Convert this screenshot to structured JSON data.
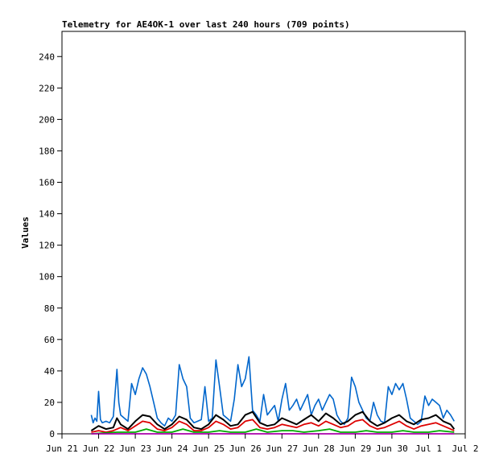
{
  "chart_data": {
    "type": "line",
    "title": "Telemetry for AE4OK-1 over last 240 hours (709 points)",
    "xlabel": "",
    "ylabel": "Values",
    "x_ticks": [
      "Jun 21",
      "Jun 22",
      "Jun 23",
      "Jun 24",
      "Jun 25",
      "Jun 26",
      "Jun 27",
      "Jun 28",
      "Jun 29",
      "Jun 30",
      "Jul 1",
      "Jul 2"
    ],
    "y_ticks": [
      0,
      20,
      40,
      60,
      80,
      100,
      120,
      140,
      160,
      180,
      200,
      220,
      240
    ],
    "ylim": [
      0,
      256
    ],
    "xlim_days": [
      0,
      11
    ],
    "grid": false,
    "legend": "none",
    "series": [
      {
        "color": "#0066cc",
        "x": [
          0.8,
          0.85,
          0.9,
          0.95,
          1.0,
          1.05,
          1.1,
          1.2,
          1.3,
          1.4,
          1.5,
          1.55,
          1.6,
          1.7,
          1.8,
          1.9,
          2.0,
          2.1,
          2.2,
          2.3,
          2.4,
          2.5,
          2.6,
          2.7,
          2.8,
          2.9,
          3.0,
          3.1,
          3.2,
          3.3,
          3.4,
          3.5,
          3.6,
          3.7,
          3.8,
          3.9,
          4.0,
          4.1,
          4.2,
          4.3,
          4.4,
          4.5,
          4.6,
          4.7,
          4.8,
          4.9,
          5.0,
          5.1,
          5.2,
          5.3,
          5.4,
          5.5,
          5.6,
          5.7,
          5.8,
          5.9,
          6.0,
          6.1,
          6.2,
          6.3,
          6.4,
          6.5,
          6.6,
          6.7,
          6.8,
          6.9,
          7.0,
          7.1,
          7.2,
          7.3,
          7.4,
          7.5,
          7.6,
          7.7,
          7.8,
          7.9,
          8.0,
          8.1,
          8.2,
          8.3,
          8.4,
          8.5,
          8.6,
          8.7,
          8.8,
          8.9,
          9.0,
          9.1,
          9.2,
          9.3,
          9.4,
          9.5,
          9.6,
          9.7,
          9.8,
          9.9,
          10.0,
          10.1,
          10.2,
          10.3,
          10.4,
          10.5,
          10.6,
          10.7
        ],
        "values": [
          12,
          7,
          10,
          8,
          27,
          9,
          7,
          8,
          7,
          11,
          41,
          20,
          12,
          10,
          8,
          32,
          25,
          35,
          42,
          38,
          30,
          20,
          10,
          7,
          5,
          10,
          8,
          12,
          44,
          35,
          30,
          10,
          7,
          8,
          9,
          30,
          8,
          10,
          47,
          30,
          12,
          10,
          8,
          22,
          44,
          30,
          35,
          49,
          15,
          12,
          8,
          25,
          12,
          15,
          18,
          8,
          22,
          32,
          15,
          18,
          22,
          15,
          20,
          25,
          12,
          18,
          22,
          15,
          20,
          25,
          22,
          12,
          8,
          6,
          10,
          36,
          30,
          20,
          15,
          10,
          8,
          20,
          12,
          8,
          7,
          30,
          25,
          32,
          28,
          32,
          22,
          10,
          8,
          6,
          8,
          24,
          18,
          22,
          20,
          18,
          10,
          15,
          12,
          8
        ]
      },
      {
        "color": "#000000",
        "x": [
          0.8,
          1.0,
          1.2,
          1.4,
          1.5,
          1.6,
          1.8,
          2.0,
          2.2,
          2.4,
          2.6,
          2.8,
          3.0,
          3.2,
          3.4,
          3.6,
          3.8,
          4.0,
          4.2,
          4.4,
          4.6,
          4.8,
          5.0,
          5.2,
          5.4,
          5.6,
          5.8,
          6.0,
          6.2,
          6.4,
          6.6,
          6.8,
          7.0,
          7.2,
          7.4,
          7.6,
          7.8,
          8.0,
          8.2,
          8.4,
          8.6,
          8.8,
          9.0,
          9.2,
          9.4,
          9.6,
          9.8,
          10.0,
          10.2,
          10.4,
          10.6,
          10.7
        ],
        "values": [
          2,
          5,
          3,
          4,
          10,
          6,
          3,
          8,
          12,
          11,
          6,
          3,
          6,
          11,
          9,
          4,
          3,
          6,
          12,
          9,
          5,
          6,
          12,
          14,
          7,
          5,
          6,
          10,
          8,
          6,
          9,
          12,
          8,
          13,
          10,
          6,
          8,
          12,
          14,
          8,
          5,
          7,
          10,
          12,
          8,
          6,
          9,
          10,
          12,
          8,
          6,
          3
        ]
      },
      {
        "color": "#dd0000",
        "x": [
          0.8,
          1.0,
          1.2,
          1.4,
          1.6,
          1.8,
          2.0,
          2.2,
          2.4,
          2.6,
          2.8,
          3.0,
          3.2,
          3.4,
          3.6,
          3.8,
          4.0,
          4.2,
          4.4,
          4.6,
          4.8,
          5.0,
          5.2,
          5.4,
          5.6,
          5.8,
          6.0,
          6.2,
          6.4,
          6.6,
          6.8,
          7.0,
          7.2,
          7.4,
          7.6,
          7.8,
          8.0,
          8.2,
          8.4,
          8.6,
          8.8,
          9.0,
          9.2,
          9.4,
          9.6,
          9.8,
          10.0,
          10.2,
          10.4,
          10.6,
          10.7
        ],
        "values": [
          1,
          2,
          1,
          2,
          4,
          2,
          5,
          8,
          7,
          3,
          2,
          4,
          8,
          6,
          2,
          2,
          4,
          8,
          6,
          3,
          4,
          8,
          9,
          4,
          3,
          4,
          6,
          5,
          4,
          6,
          7,
          5,
          8,
          6,
          4,
          5,
          8,
          9,
          5,
          3,
          4,
          6,
          8,
          5,
          3,
          5,
          6,
          7,
          5,
          3,
          2
        ]
      },
      {
        "color": "#00aa00",
        "x": [
          0.8,
          1.5,
          2.0,
          2.3,
          2.6,
          3.0,
          3.3,
          3.6,
          4.0,
          4.3,
          4.6,
          5.0,
          5.3,
          5.6,
          6.0,
          6.3,
          6.6,
          7.0,
          7.3,
          7.6,
          8.0,
          8.3,
          8.6,
          9.0,
          9.3,
          9.6,
          10.0,
          10.3,
          10.7
        ],
        "values": [
          0,
          1,
          1,
          3,
          1,
          1,
          3,
          1,
          1,
          2,
          1,
          1,
          3,
          1,
          2,
          2,
          1,
          2,
          3,
          1,
          1,
          2,
          1,
          1,
          2,
          1,
          1,
          2,
          1
        ]
      },
      {
        "color": "#aa00aa",
        "x": [
          0.8,
          10.7
        ],
        "values": [
          0,
          0
        ]
      }
    ]
  }
}
